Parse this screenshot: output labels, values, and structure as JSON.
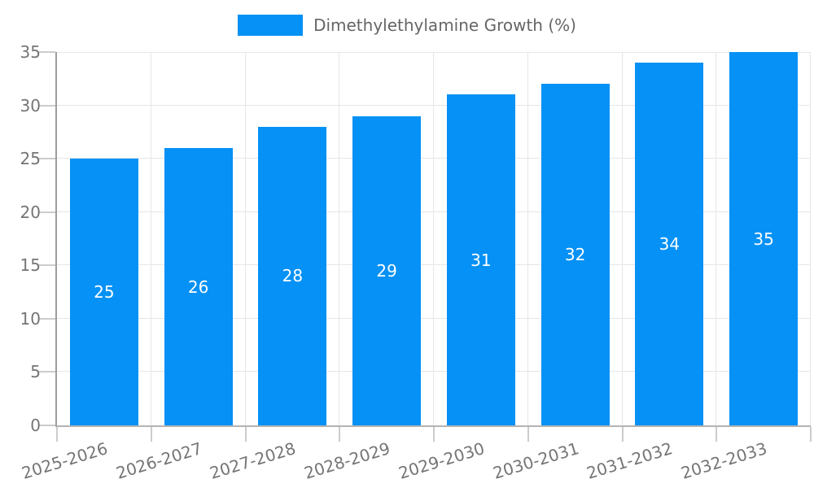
{
  "legend": {
    "label": "Dimethylethylamine Growth (%)"
  },
  "chart_data": {
    "type": "bar",
    "title": "Dimethylethylamine Growth (%)",
    "categories": [
      "2025-2026",
      "2026-2027",
      "2027-2028",
      "2028-2029",
      "2029-2030",
      "2030-2031",
      "2031-2032",
      "2032-2033"
    ],
    "values": [
      25,
      26,
      28,
      29,
      31,
      32,
      34,
      35
    ],
    "bar_value_labels": [
      "25",
      "26",
      "28",
      "29",
      "31",
      "32",
      "34",
      "35"
    ],
    "ytick_labels": [
      "0",
      "5",
      "10",
      "15",
      "20",
      "25",
      "30",
      "35"
    ],
    "xlabel": "",
    "ylabel": "",
    "ylim": [
      0,
      35
    ],
    "ytick_step": 5,
    "grid": true,
    "legend_position": "top",
    "xtick_rotation_deg": -17
  },
  "colors": {
    "bar": "#0591f5",
    "bar_label": "#ffffff",
    "grid": "#e6e6e6",
    "tick": "#cccccc",
    "axis_y": "#9e9e9e",
    "axis_x": "#b3b3b3",
    "tick_text": "#757575",
    "legend_text": "#666666",
    "background": "#ffffff"
  }
}
